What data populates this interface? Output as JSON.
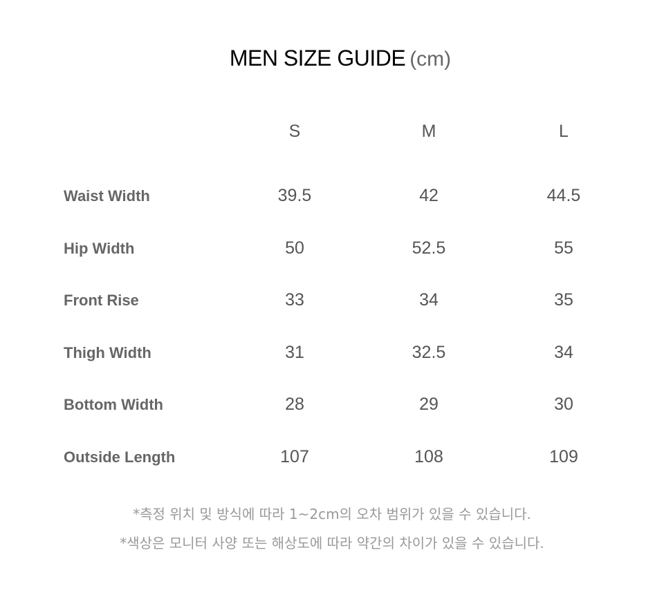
{
  "title": {
    "main": "MEN SIZE GUIDE",
    "unit": "(cm)"
  },
  "sizes": [
    "S",
    "M",
    "L"
  ],
  "rows": [
    {
      "label": "Waist Width",
      "values": [
        "39.5",
        "42",
        "44.5"
      ]
    },
    {
      "label": "Hip Width",
      "values": [
        "50",
        "52.5",
        "55"
      ]
    },
    {
      "label": "Front Rise",
      "values": [
        "33",
        "34",
        "35"
      ]
    },
    {
      "label": "Thigh Width",
      "values": [
        "31",
        "32.5",
        "34"
      ]
    },
    {
      "label": "Bottom Width",
      "values": [
        "28",
        "29",
        "30"
      ]
    },
    {
      "label": "Outside Length",
      "values": [
        "107",
        "108",
        "109"
      ]
    }
  ],
  "notes": [
    "*측정 위치 및 방식에 따라 1~2cm의 오차 범위가 있을 수 있습니다.",
    "*색상은 모니터 사양 또는 해상도에 따라 약간의 차이가 있을 수 있습니다."
  ]
}
